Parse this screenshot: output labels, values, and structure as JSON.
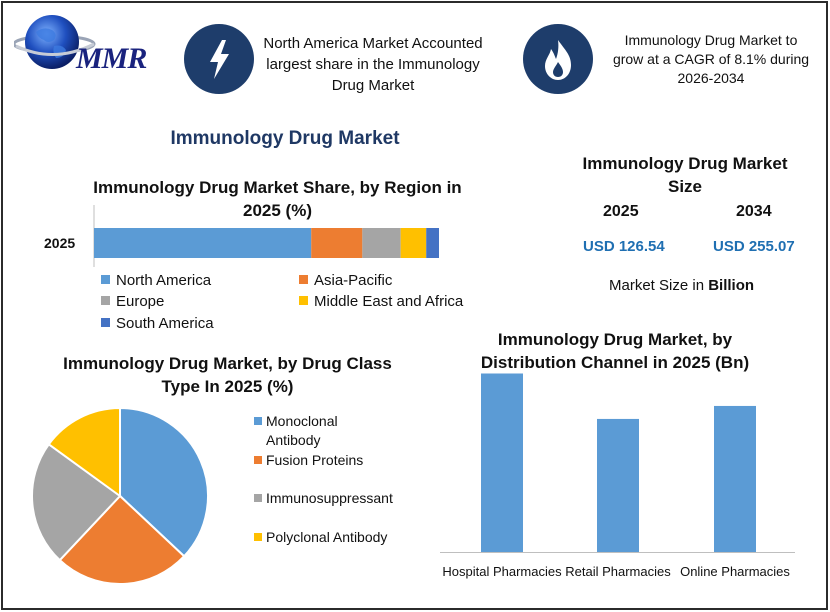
{
  "colors": {
    "north_america": "#5b9bd5",
    "asia_pacific": "#ed7d31",
    "europe": "#a5a5a5",
    "middle_east_africa": "#ffc000",
    "south_america": "#4472c4",
    "title_blue": "#1f3864",
    "usd_blue": "#1f6fb2",
    "icon_bg": "#1e3d6b"
  },
  "logo": {
    "text": "MMR"
  },
  "highlights": {
    "left_icon": "lightning-bolt-icon",
    "left_text": "North America Market Accounted largest share in the Immunology Drug Market",
    "right_icon": "flame-icon",
    "right_text": "Immunology Drug Market to grow at a CAGR of 8.1% during 2026-2034"
  },
  "main_title": "Immunology Drug Market",
  "market_size": {
    "title": "Immunology Drug Market Size",
    "year1": "2025",
    "year2": "2034",
    "value1": "USD 126.54",
    "value2": "USD 255.07",
    "note_prefix": "Market Size in ",
    "note_unit": "Billion"
  },
  "chart_data": [
    {
      "type": "bar",
      "orientation": "horizontal-stacked",
      "title": "Immunology Drug Market Share, by Region in 2025 (%)",
      "categories": [
        "2025"
      ],
      "series": [
        {
          "name": "North America",
          "values": [
            51
          ]
        },
        {
          "name": "Asia-Pacific",
          "values": [
            12
          ]
        },
        {
          "name": "Europe",
          "values": [
            9
          ]
        },
        {
          "name": "Middle East and Africa",
          "values": [
            6
          ]
        },
        {
          "name": "South America",
          "values": [
            3
          ]
        }
      ],
      "xlim": [
        0,
        81
      ],
      "legend": "bottom"
    },
    {
      "type": "pie",
      "title": "Immunology Drug Market, by Drug Class Type In 2025 (%)",
      "labels": [
        "Monoclonal Antibody",
        "Fusion Proteins",
        "Immunosuppressant",
        "Polyclonal Antibody"
      ],
      "values": [
        37,
        25,
        23,
        15
      ],
      "legend": "right"
    },
    {
      "type": "bar",
      "title": "Immunology Drug Market, by Distribution Channel in 2025 (Bn)",
      "categories": [
        "Hospital Pharmacies",
        "Retail Pharmacies",
        "Online Pharmacies"
      ],
      "values": [
        55,
        41,
        45
      ],
      "ylim": [
        0,
        57
      ],
      "grid": false
    }
  ]
}
